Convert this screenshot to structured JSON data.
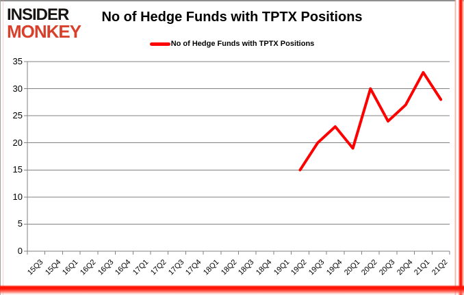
{
  "logo": {
    "line1": "INSIDER",
    "line2": "MONKEY"
  },
  "colors": {
    "logo_black": "#171413",
    "logo_red": "#d8402c",
    "line_red": "#ff0000",
    "grid_gray": "#808080",
    "frame_gray": "#8e8e8e",
    "frame_red_glow": "#ff1505",
    "text_black": "#000000"
  },
  "chart_data": {
    "type": "line",
    "title": "No of Hedge Funds with TPTX Positions",
    "legend": [
      "No of Hedge Funds with TPTX Positions"
    ],
    "legend_position": "top-center",
    "grid": true,
    "categories": [
      "15Q3",
      "15Q4",
      "16Q1",
      "16Q2",
      "16Q3",
      "16Q4",
      "17Q1",
      "17Q2",
      "17Q3",
      "17Q4",
      "18Q1",
      "18Q2",
      "18Q3",
      "18Q4",
      "19Q1",
      "19Q2",
      "19Q3",
      "19Q4",
      "20Q1",
      "20Q2",
      "20Q3",
      "20Q4",
      "21Q1",
      "21Q2"
    ],
    "series": [
      {
        "name": "No of Hedge Funds with TPTX Positions",
        "color": "#ff0000",
        "values": [
          null,
          null,
          null,
          null,
          null,
          null,
          null,
          null,
          null,
          null,
          null,
          null,
          null,
          null,
          null,
          15,
          20,
          23,
          19,
          30,
          24,
          27,
          33,
          28
        ]
      }
    ],
    "ylim": [
      0,
      35
    ],
    "ytick_step": 5,
    "axis_color": "#808080"
  }
}
